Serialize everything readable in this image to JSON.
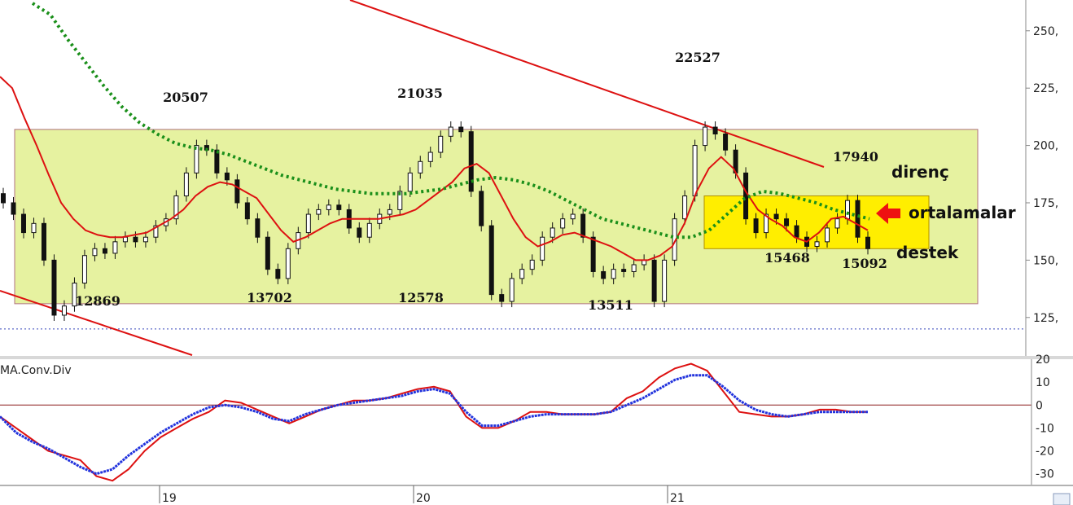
{
  "chart_data": [
    {
      "type": "candlestick",
      "title": "",
      "y_axis": {
        "min": 110,
        "max": 262,
        "ticks": [
          "250,",
          "225,",
          "200,",
          "175,",
          "150,",
          "125,"
        ]
      },
      "x_axis": {
        "ticks": [
          "19",
          "20",
          "21"
        ]
      },
      "reference_line": 120,
      "channel_box": {
        "top": 207,
        "bottom": 131
      },
      "highlight_box": {
        "top": 178,
        "bottom": 155
      },
      "annotations": {
        "highs": [
          "20507",
          "21035",
          "22527",
          "17940"
        ],
        "lows": [
          "12869",
          "13702",
          "12578",
          "13511",
          "15468",
          "15092"
        ],
        "labels": {
          "resistance": "direnç",
          "averages": "ortalamalar",
          "support": "destek"
        }
      },
      "series": [
        {
          "role": "close",
          "values": [
            175,
            170,
            162,
            166,
            150,
            126,
            130,
            140,
            152,
            155,
            153,
            158,
            160,
            158,
            160,
            165,
            168,
            178,
            188,
            200,
            198,
            188,
            185,
            175,
            168,
            160,
            146,
            142,
            155,
            162,
            170,
            172,
            174,
            172,
            164,
            160,
            166,
            170,
            172,
            180,
            188,
            193,
            197,
            204,
            208,
            206,
            180,
            165,
            135,
            132,
            142,
            146,
            150,
            160,
            164,
            168,
            170,
            160,
            145,
            142,
            146,
            145,
            148,
            150,
            132,
            150,
            168,
            178,
            200,
            208,
            205,
            198,
            188,
            168,
            162,
            170,
            168,
            165,
            160,
            156,
            158,
            164,
            168,
            176,
            160,
            155
          ]
        },
        {
          "role": "moving_average_red",
          "values": [
            230,
            225,
            212,
            200,
            187,
            175,
            168,
            163,
            161,
            160,
            160,
            161,
            162,
            165,
            168,
            172,
            178,
            182,
            184,
            183,
            180,
            177,
            170,
            163,
            158,
            160,
            163,
            166,
            168,
            168,
            168,
            168,
            169,
            170,
            172,
            176,
            180,
            184,
            190,
            192,
            188,
            178,
            168,
            160,
            156,
            158,
            161,
            162,
            160,
            158,
            156,
            153,
            150,
            150,
            152,
            156,
            166,
            180,
            190,
            195,
            190,
            180,
            172,
            168,
            165,
            160,
            158,
            162,
            168,
            169,
            166,
            163
          ]
        },
        {
          "role": "moving_average_green",
          "values": [
            262,
            257,
            246,
            236,
            226,
            217,
            210,
            205,
            201,
            199,
            198,
            196,
            193,
            190,
            187,
            185,
            183,
            181,
            180,
            179,
            179,
            179,
            180,
            181,
            183,
            185,
            186,
            185,
            183,
            180,
            176,
            172,
            168,
            166,
            164,
            162,
            160,
            160,
            163,
            170,
            177,
            180,
            179,
            177,
            175,
            172,
            170,
            168
          ]
        }
      ]
    },
    {
      "type": "line",
      "title": "MA.Conv.Div",
      "y_axis": {
        "min": -34,
        "max": 20,
        "ticks": [
          "20",
          "10",
          "0",
          "-10",
          "-20",
          "-30"
        ]
      },
      "series": [
        {
          "role": "red",
          "values": [
            -5,
            -10,
            -15,
            -20,
            -22,
            -24,
            -31,
            -33,
            -28,
            -20,
            -14,
            -10,
            -6,
            -3,
            2,
            1,
            -2,
            -5,
            -8,
            -5,
            -2,
            0,
            2,
            2,
            3,
            5,
            7,
            8,
            6,
            -5,
            -10,
            -10,
            -7,
            -3,
            -3,
            -4,
            -4,
            -4,
            -3,
            3,
            6,
            12,
            16,
            18,
            15,
            6,
            -3,
            -4,
            -5,
            -5,
            -4,
            -2,
            -2,
            -3,
            -3
          ]
        },
        {
          "role": "blue",
          "values": [
            -5,
            -12,
            -16,
            -19,
            -23,
            -27,
            -30,
            -28,
            -22,
            -17,
            -12,
            -8,
            -4,
            -1,
            0,
            -1,
            -3,
            -6,
            -7,
            -4,
            -2,
            0,
            1,
            2,
            3,
            4,
            6,
            7,
            5,
            -3,
            -9,
            -9,
            -7,
            -5,
            -4,
            -4,
            -4,
            -4,
            -3,
            0,
            3,
            7,
            11,
            13,
            13,
            8,
            2,
            -2,
            -4,
            -5,
            -4,
            -3,
            -3,
            -3,
            -3
          ]
        }
      ]
    }
  ]
}
